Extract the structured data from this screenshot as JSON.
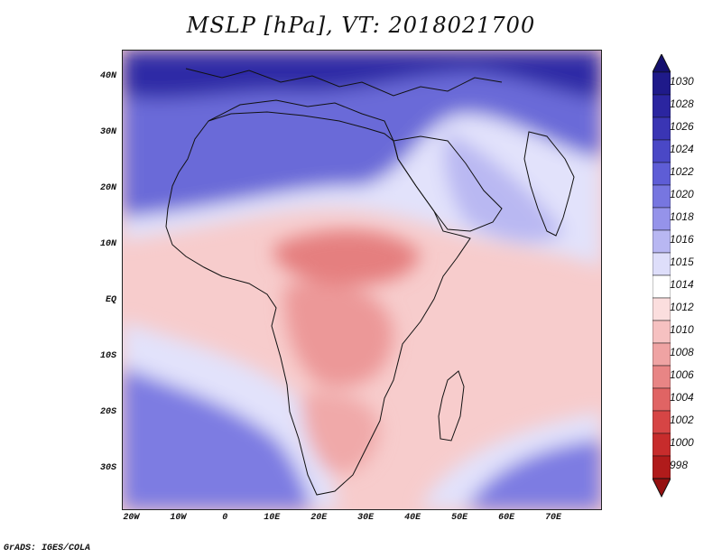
{
  "title": "MSLP [hPa], VT: 2018021700",
  "credit": "GrADS: IGES/COLA",
  "axes": {
    "lat_labels": [
      {
        "text": "40N",
        "lat": 40
      },
      {
        "text": "30N",
        "lat": 30
      },
      {
        "text": "20N",
        "lat": 20
      },
      {
        "text": "10N",
        "lat": 10
      },
      {
        "text": "EQ",
        "lat": 0
      },
      {
        "text": "10S",
        "lat": -10
      },
      {
        "text": "20S",
        "lat": -20
      },
      {
        "text": "30S",
        "lat": -30
      }
    ],
    "lon_labels": [
      {
        "text": "20W",
        "lon": -20
      },
      {
        "text": "10W",
        "lon": -10
      },
      {
        "text": "0",
        "lon": 0
      },
      {
        "text": "10E",
        "lon": 10
      },
      {
        "text": "20E",
        "lon": 20
      },
      {
        "text": "30E",
        "lon": 30
      },
      {
        "text": "40E",
        "lon": 40
      },
      {
        "text": "50E",
        "lon": 50
      },
      {
        "text": "60E",
        "lon": 60
      },
      {
        "text": "70E",
        "lon": 70
      }
    ],
    "lon_range": [
      -22,
      80
    ],
    "lat_range": [
      -37,
      45
    ]
  },
  "colorbar": {
    "levels": [
      {
        "label": "1030",
        "color": "#1f1a8a"
      },
      {
        "label": "1028",
        "color": "#2b25a0"
      },
      {
        "label": "1026",
        "color": "#3a35b4"
      },
      {
        "label": "1024",
        "color": "#4a48c6"
      },
      {
        "label": "1022",
        "color": "#5e5dd6"
      },
      {
        "label": "1020",
        "color": "#7776e0"
      },
      {
        "label": "1018",
        "color": "#9593ea"
      },
      {
        "label": "1016",
        "color": "#b8b7f2"
      },
      {
        "label": "1015",
        "color": "#dedefa"
      },
      {
        "label": "1014",
        "color": "#ffffff"
      },
      {
        "label": "1012",
        "color": "#fbdede"
      },
      {
        "label": "1010",
        "color": "#f6c1c1"
      },
      {
        "label": "1008",
        "color": "#efa3a3"
      },
      {
        "label": "1006",
        "color": "#e88585"
      },
      {
        "label": "1004",
        "color": "#e06464"
      },
      {
        "label": "1002",
        "color": "#d64545"
      },
      {
        "label": "1000",
        "color": "#c72c2c"
      },
      {
        "label": "998",
        "color": "#b01b1b"
      }
    ],
    "top_arrow_color": "#15106e",
    "bottom_arrow_color": "#951010"
  },
  "field_colors": {
    "ocean_south_high": "#7d7ce2",
    "sahara_high": "#6b6ad8",
    "north_high": "#2f2aa6",
    "arabia": "#b9b8f2",
    "tropics": "#f7cccc",
    "congo_low": "#ec9898",
    "sudan_low": "#e57f7f",
    "kalahari": "#f0a9a9",
    "transition": "#e2e2fb"
  }
}
